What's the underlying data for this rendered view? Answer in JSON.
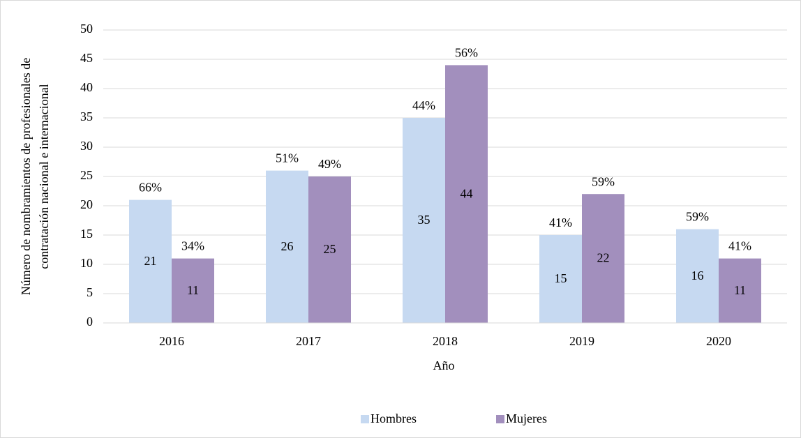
{
  "chart_data": {
    "type": "bar",
    "xlabel": "Año",
    "ylabel": [
      "Número de nombramientos de profesionales de",
      "contratación nacional e internacional"
    ],
    "categories": [
      "2016",
      "2017",
      "2018",
      "2019",
      "2020"
    ],
    "series": [
      {
        "name": "Hombres",
        "color": "#c6d9f1",
        "values": [
          21,
          26,
          35,
          15,
          16
        ],
        "share_labels": [
          "66%",
          "51%",
          "44%",
          "41%",
          "59%"
        ]
      },
      {
        "name": "Mujeres",
        "color": "#a28fbd",
        "values": [
          11,
          25,
          44,
          22,
          11
        ],
        "share_labels": [
          "34%",
          "49%",
          "56%",
          "59%",
          "41%"
        ]
      }
    ],
    "ylim": [
      0,
      50
    ],
    "yticks": [
      0,
      5,
      10,
      15,
      20,
      25,
      30,
      35,
      40,
      45,
      50
    ],
    "grid": true,
    "legend": "bottom"
  }
}
